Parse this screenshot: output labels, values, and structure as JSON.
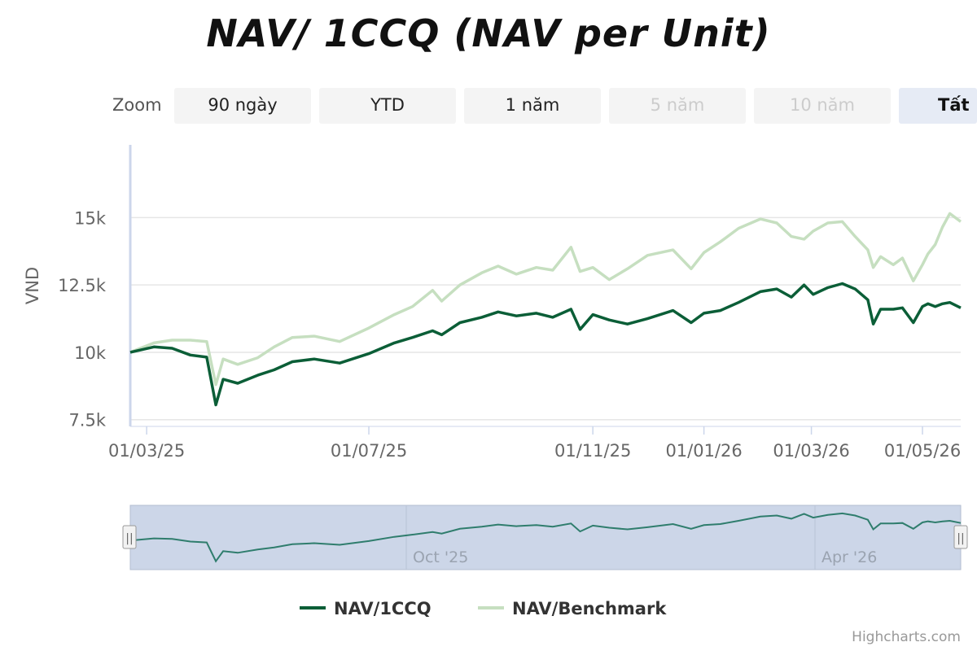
{
  "chart_title": "NAV/ 1CCQ (NAV per Unit)",
  "zoom": {
    "label": "Zoom",
    "buttons": [
      {
        "label": "90 ngày",
        "state": "normal"
      },
      {
        "label": "YTD",
        "state": "normal"
      },
      {
        "label": "1 năm",
        "state": "normal"
      },
      {
        "label": "5 năm",
        "state": "disabled"
      },
      {
        "label": "10 năm",
        "state": "disabled"
      },
      {
        "label": "Tất",
        "state": "active"
      }
    ]
  },
  "navigator": {
    "labels": [
      "Oct '25",
      "Apr '26"
    ],
    "handle_glyph": "||"
  },
  "credits": "Highcharts.com",
  "colors": {
    "nav": "#0b5e37",
    "benchmark": "#c6dfc0",
    "navigator_fill": "#ccd6e8",
    "navigator_line": "#2f7d6d",
    "grid": "#e6e6e6",
    "axis": "#ccd6eb"
  },
  "chart_data": {
    "type": "line",
    "title": "NAV/ 1CCQ (NAV per Unit)",
    "ylabel": "VND",
    "xlabel": "",
    "ylim": [
      7250,
      17700
    ],
    "y_ticks": [
      7500,
      10000,
      12500,
      15000
    ],
    "y_tick_labels": [
      "7.5k",
      "10k",
      "12.5k",
      "15k"
    ],
    "x_range": [
      "2025-02-20",
      "2026-05-22"
    ],
    "x_ticks": [
      "2025-03-01",
      "2025-07-01",
      "2025-11-01",
      "2026-01-01",
      "2026-03-01",
      "2026-05-01"
    ],
    "x_tick_labels": [
      "01/03/25",
      "01/07/25",
      "01/11/25",
      "01/01/26",
      "01/03/26",
      "01/05/26"
    ],
    "grid": true,
    "legend_position": "bottom-center",
    "series": [
      {
        "name": "NAV/1CCQ",
        "points": [
          [
            "2025-02-20",
            10000
          ],
          [
            "2025-03-05",
            10200
          ],
          [
            "2025-03-15",
            10150
          ],
          [
            "2025-03-25",
            9900
          ],
          [
            "2025-04-03",
            9820
          ],
          [
            "2025-04-08",
            8050
          ],
          [
            "2025-04-12",
            9000
          ],
          [
            "2025-04-20",
            8850
          ],
          [
            "2025-05-01",
            9150
          ],
          [
            "2025-05-10",
            9350
          ],
          [
            "2025-05-20",
            9650
          ],
          [
            "2025-06-01",
            9750
          ],
          [
            "2025-06-15",
            9600
          ],
          [
            "2025-07-01",
            9950
          ],
          [
            "2025-07-15",
            10350
          ],
          [
            "2025-07-25",
            10550
          ],
          [
            "2025-08-05",
            10800
          ],
          [
            "2025-08-10",
            10650
          ],
          [
            "2025-08-20",
            11100
          ],
          [
            "2025-09-01",
            11300
          ],
          [
            "2025-09-10",
            11500
          ],
          [
            "2025-09-20",
            11350
          ],
          [
            "2025-10-01",
            11450
          ],
          [
            "2025-10-10",
            11300
          ],
          [
            "2025-10-20",
            11600
          ],
          [
            "2025-10-25",
            10850
          ],
          [
            "2025-11-01",
            11400
          ],
          [
            "2025-11-10",
            11200
          ],
          [
            "2025-11-20",
            11050
          ],
          [
            "2025-12-01",
            11250
          ],
          [
            "2025-12-15",
            11550
          ],
          [
            "2025-12-25",
            11100
          ],
          [
            "2026-01-01",
            11450
          ],
          [
            "2026-01-10",
            11550
          ],
          [
            "2026-01-20",
            11850
          ],
          [
            "2026-02-01",
            12250
          ],
          [
            "2026-02-10",
            12350
          ],
          [
            "2026-02-18",
            12050
          ],
          [
            "2026-02-25",
            12500
          ],
          [
            "2026-03-02",
            12150
          ],
          [
            "2026-03-10",
            12400
          ],
          [
            "2026-03-18",
            12550
          ],
          [
            "2026-03-25",
            12350
          ],
          [
            "2026-04-01",
            11950
          ],
          [
            "2026-04-04",
            11050
          ],
          [
            "2026-04-08",
            11600
          ],
          [
            "2026-04-15",
            11600
          ],
          [
            "2026-04-20",
            11650
          ],
          [
            "2026-04-26",
            11100
          ],
          [
            "2026-05-01",
            11700
          ],
          [
            "2026-05-04",
            11800
          ],
          [
            "2026-05-08",
            11700
          ],
          [
            "2026-05-12",
            11800
          ],
          [
            "2026-05-16",
            11850
          ],
          [
            "2026-05-22",
            11650
          ]
        ]
      },
      {
        "name": "NAV/Benchmark",
        "points": [
          [
            "2025-02-20",
            10000
          ],
          [
            "2025-03-05",
            10350
          ],
          [
            "2025-03-15",
            10450
          ],
          [
            "2025-03-25",
            10450
          ],
          [
            "2025-04-03",
            10400
          ],
          [
            "2025-04-08",
            8800
          ],
          [
            "2025-04-12",
            9750
          ],
          [
            "2025-04-20",
            9550
          ],
          [
            "2025-05-01",
            9800
          ],
          [
            "2025-05-10",
            10200
          ],
          [
            "2025-05-20",
            10550
          ],
          [
            "2025-06-01",
            10600
          ],
          [
            "2025-06-15",
            10400
          ],
          [
            "2025-07-01",
            10900
          ],
          [
            "2025-07-15",
            11400
          ],
          [
            "2025-07-25",
            11700
          ],
          [
            "2025-08-05",
            12300
          ],
          [
            "2025-08-10",
            11900
          ],
          [
            "2025-08-20",
            12500
          ],
          [
            "2025-09-01",
            12950
          ],
          [
            "2025-09-10",
            13200
          ],
          [
            "2025-09-20",
            12900
          ],
          [
            "2025-10-01",
            13150
          ],
          [
            "2025-10-10",
            13050
          ],
          [
            "2025-10-20",
            13900
          ],
          [
            "2025-10-25",
            13000
          ],
          [
            "2025-11-01",
            13150
          ],
          [
            "2025-11-10",
            12700
          ],
          [
            "2025-11-20",
            13100
          ],
          [
            "2025-12-01",
            13600
          ],
          [
            "2025-12-15",
            13800
          ],
          [
            "2025-12-25",
            13100
          ],
          [
            "2026-01-01",
            13700
          ],
          [
            "2026-01-10",
            14100
          ],
          [
            "2026-01-20",
            14600
          ],
          [
            "2026-02-01",
            14950
          ],
          [
            "2026-02-10",
            14800
          ],
          [
            "2026-02-18",
            14300
          ],
          [
            "2026-02-25",
            14200
          ],
          [
            "2026-03-02",
            14500
          ],
          [
            "2026-03-10",
            14800
          ],
          [
            "2026-03-18",
            14850
          ],
          [
            "2026-03-25",
            14300
          ],
          [
            "2026-04-01",
            13800
          ],
          [
            "2026-04-04",
            13150
          ],
          [
            "2026-04-08",
            13550
          ],
          [
            "2026-04-15",
            13250
          ],
          [
            "2026-04-20",
            13500
          ],
          [
            "2026-04-26",
            12650
          ],
          [
            "2026-05-01",
            13250
          ],
          [
            "2026-05-04",
            13650
          ],
          [
            "2026-05-08",
            14000
          ],
          [
            "2026-05-12",
            14650
          ],
          [
            "2026-05-16",
            15150
          ],
          [
            "2026-05-22",
            14850
          ]
        ]
      }
    ]
  }
}
